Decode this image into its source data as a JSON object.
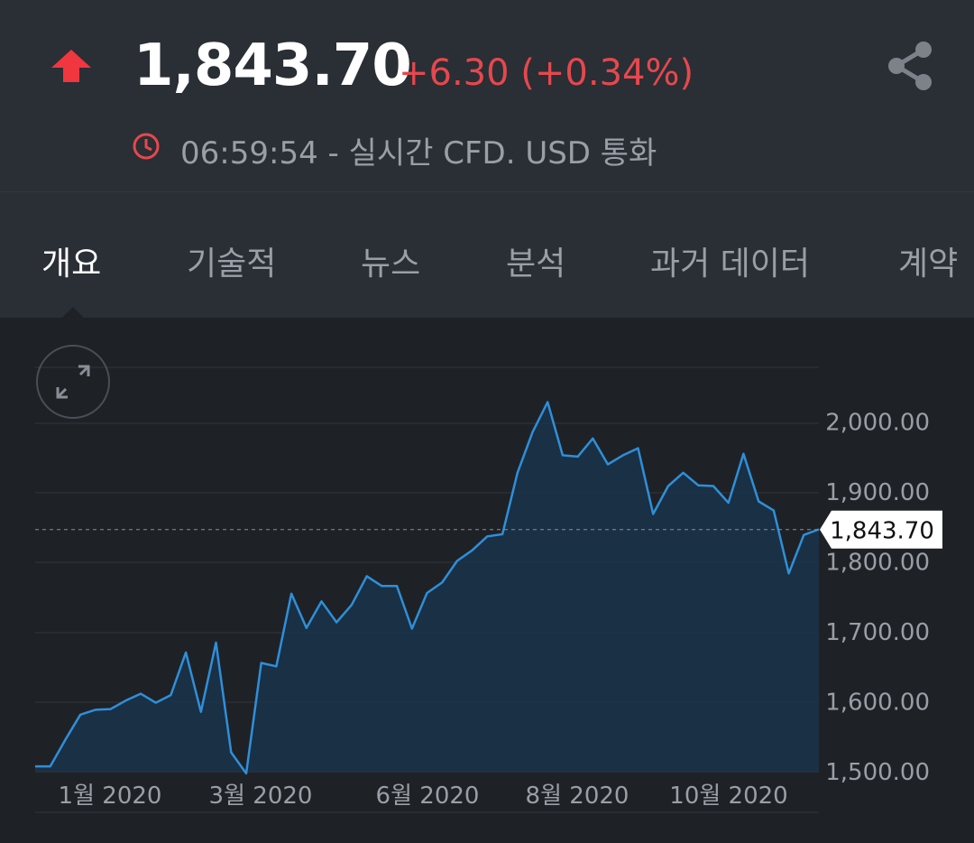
{
  "quote": {
    "price": "1,843.70",
    "change": "+6.30 (+0.34%)",
    "status": "06:59:54 - 실시간 CFD. USD 통화",
    "direction": "up",
    "up_color": "#e5484d"
  },
  "icons": {
    "direction": "arrow-up-icon",
    "share": "share-icon",
    "clock": "clock-icon",
    "expand": "expand-icon"
  },
  "tabs": [
    {
      "label": "개요",
      "active": true
    },
    {
      "label": "기술적",
      "active": false
    },
    {
      "label": "뉴스",
      "active": false
    },
    {
      "label": "분석",
      "active": false
    },
    {
      "label": "과거 데이터",
      "active": false
    },
    {
      "label": "계약",
      "active": false
    }
  ],
  "chart_data": {
    "type": "area",
    "line_color": "#2f8fd8",
    "fill_color": "#1a3550",
    "ylim": [
      1490,
      2060
    ],
    "y_ticks": [
      "1,500.00",
      "1,600.00",
      "1,700.00",
      "1,800.00",
      "1,900.00",
      "2,000.00"
    ],
    "x_tick_labels": [
      "1월 2020",
      "3월 2020",
      "6월 2020",
      "8월 2020",
      "10월 2020"
    ],
    "current_value_label": "1,843.70",
    "current_value": 1843.7,
    "values": [
      1505,
      1505,
      1543,
      1579,
      1586,
      1587,
      1599,
      1609,
      1596,
      1607,
      1668,
      1583,
      1682,
      1525,
      1495,
      1653,
      1648,
      1752,
      1703,
      1741,
      1711,
      1736,
      1777,
      1763,
      1763,
      1702,
      1753,
      1768,
      1799,
      1814,
      1834,
      1837,
      1925,
      1983,
      2026,
      1950,
      1948,
      1974,
      1937,
      1950,
      1960,
      1866,
      1906,
      1925,
      1907,
      1906,
      1882,
      1952,
      1884,
      1871,
      1781,
      1836,
      1844
    ]
  }
}
